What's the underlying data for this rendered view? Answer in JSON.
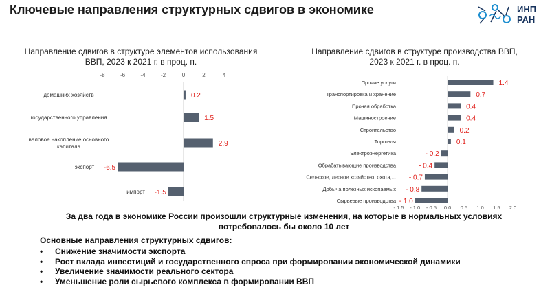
{
  "page": {
    "title": "Ключевые направления структурных сдвигов в экономике",
    "logo_text_line1": "ИНП",
    "logo_text_line2": "РАН"
  },
  "colors": {
    "bar": "#55606f",
    "label": "#e0201b",
    "axis_text": "#555555"
  },
  "chart_data": [
    {
      "type": "bar",
      "orientation": "horizontal",
      "title_line1": "Направление сдвигов в структуре элементов использования",
      "title_line2": "ВВП, 2023 к 2021 г. в проц. п.",
      "categories": [
        "домашних хозяйств",
        "государственного управления",
        "валовое накопление основного капитала",
        "экспорт",
        "импорт"
      ],
      "category_lines": [
        [
          "домашних хозяйств"
        ],
        [
          "государственного управления"
        ],
        [
          "валовое накопление основного",
          "капитала"
        ],
        [
          "экспорт"
        ],
        [
          "импорт"
        ]
      ],
      "values": [
        0.2,
        1.5,
        2.9,
        -6.5,
        -1.5
      ],
      "value_labels": [
        "0.2",
        "1.5",
        "2.9",
        "-6.5",
        "-1.5"
      ],
      "xlim": [
        -8,
        4
      ],
      "ticks": [
        -8,
        -6,
        -4,
        -2,
        0,
        2,
        4
      ],
      "tick_labels": [
        "-8",
        "-6",
        "-4",
        "-2",
        "0",
        "2",
        "4"
      ],
      "axis_position": "top",
      "grid": false
    },
    {
      "type": "bar",
      "orientation": "horizontal",
      "title_line1": "Направление сдвигов в структуре производства ВВП,",
      "title_line2": "2023 к 2021 г. в проц. п.",
      "categories": [
        "Прочие услуги",
        "Транспортировка и хранение",
        "Прочая обработка",
        "Машиностроение",
        "Строительство",
        "Торговля",
        "Электроэнергетика",
        "Обрабатывающие производства",
        "Сельское, лесное хозяйство, охота,...",
        "Добыча полезных ископаемых",
        "Сырьевые производства"
      ],
      "values": [
        1.4,
        0.7,
        0.4,
        0.4,
        0.2,
        0.1,
        -0.2,
        -0.4,
        -0.7,
        -0.8,
        -1.0
      ],
      "value_labels": [
        "1.4",
        "0.7",
        "0.4",
        "0.4",
        "0.2",
        "0.1",
        "- 0.2",
        "- 0.4",
        "- 0.7",
        "- 0.8",
        "- 1.0"
      ],
      "xlim": [
        -1.5,
        2.0
      ],
      "ticks": [
        -1.5,
        -1.0,
        -0.5,
        0.0,
        0.5,
        1.0,
        1.5,
        2.0
      ],
      "tick_labels": [
        "- 1.5",
        "- 1.0",
        "- 0.5",
        "0.0",
        "0.5",
        "1.0",
        "1.5",
        "2.0"
      ],
      "axis_position": "bottom",
      "grid": false
    }
  ],
  "summary": {
    "line1": "За два года в экономике России произошли структурные изменения, на которые в нормальных условиях",
    "line2": "потребовалось бы около 10 лет"
  },
  "directions": {
    "title": "Основные направления структурных сдвигов:",
    "items": [
      "Снижение значимости экспорта",
      "Рост вклада инвестиций и государственного спроса при формировании экономической динамики",
      "Увеличение значимости реального сектора",
      "Уменьшение роли сырьевого комплекса в формировании ВВП"
    ]
  }
}
